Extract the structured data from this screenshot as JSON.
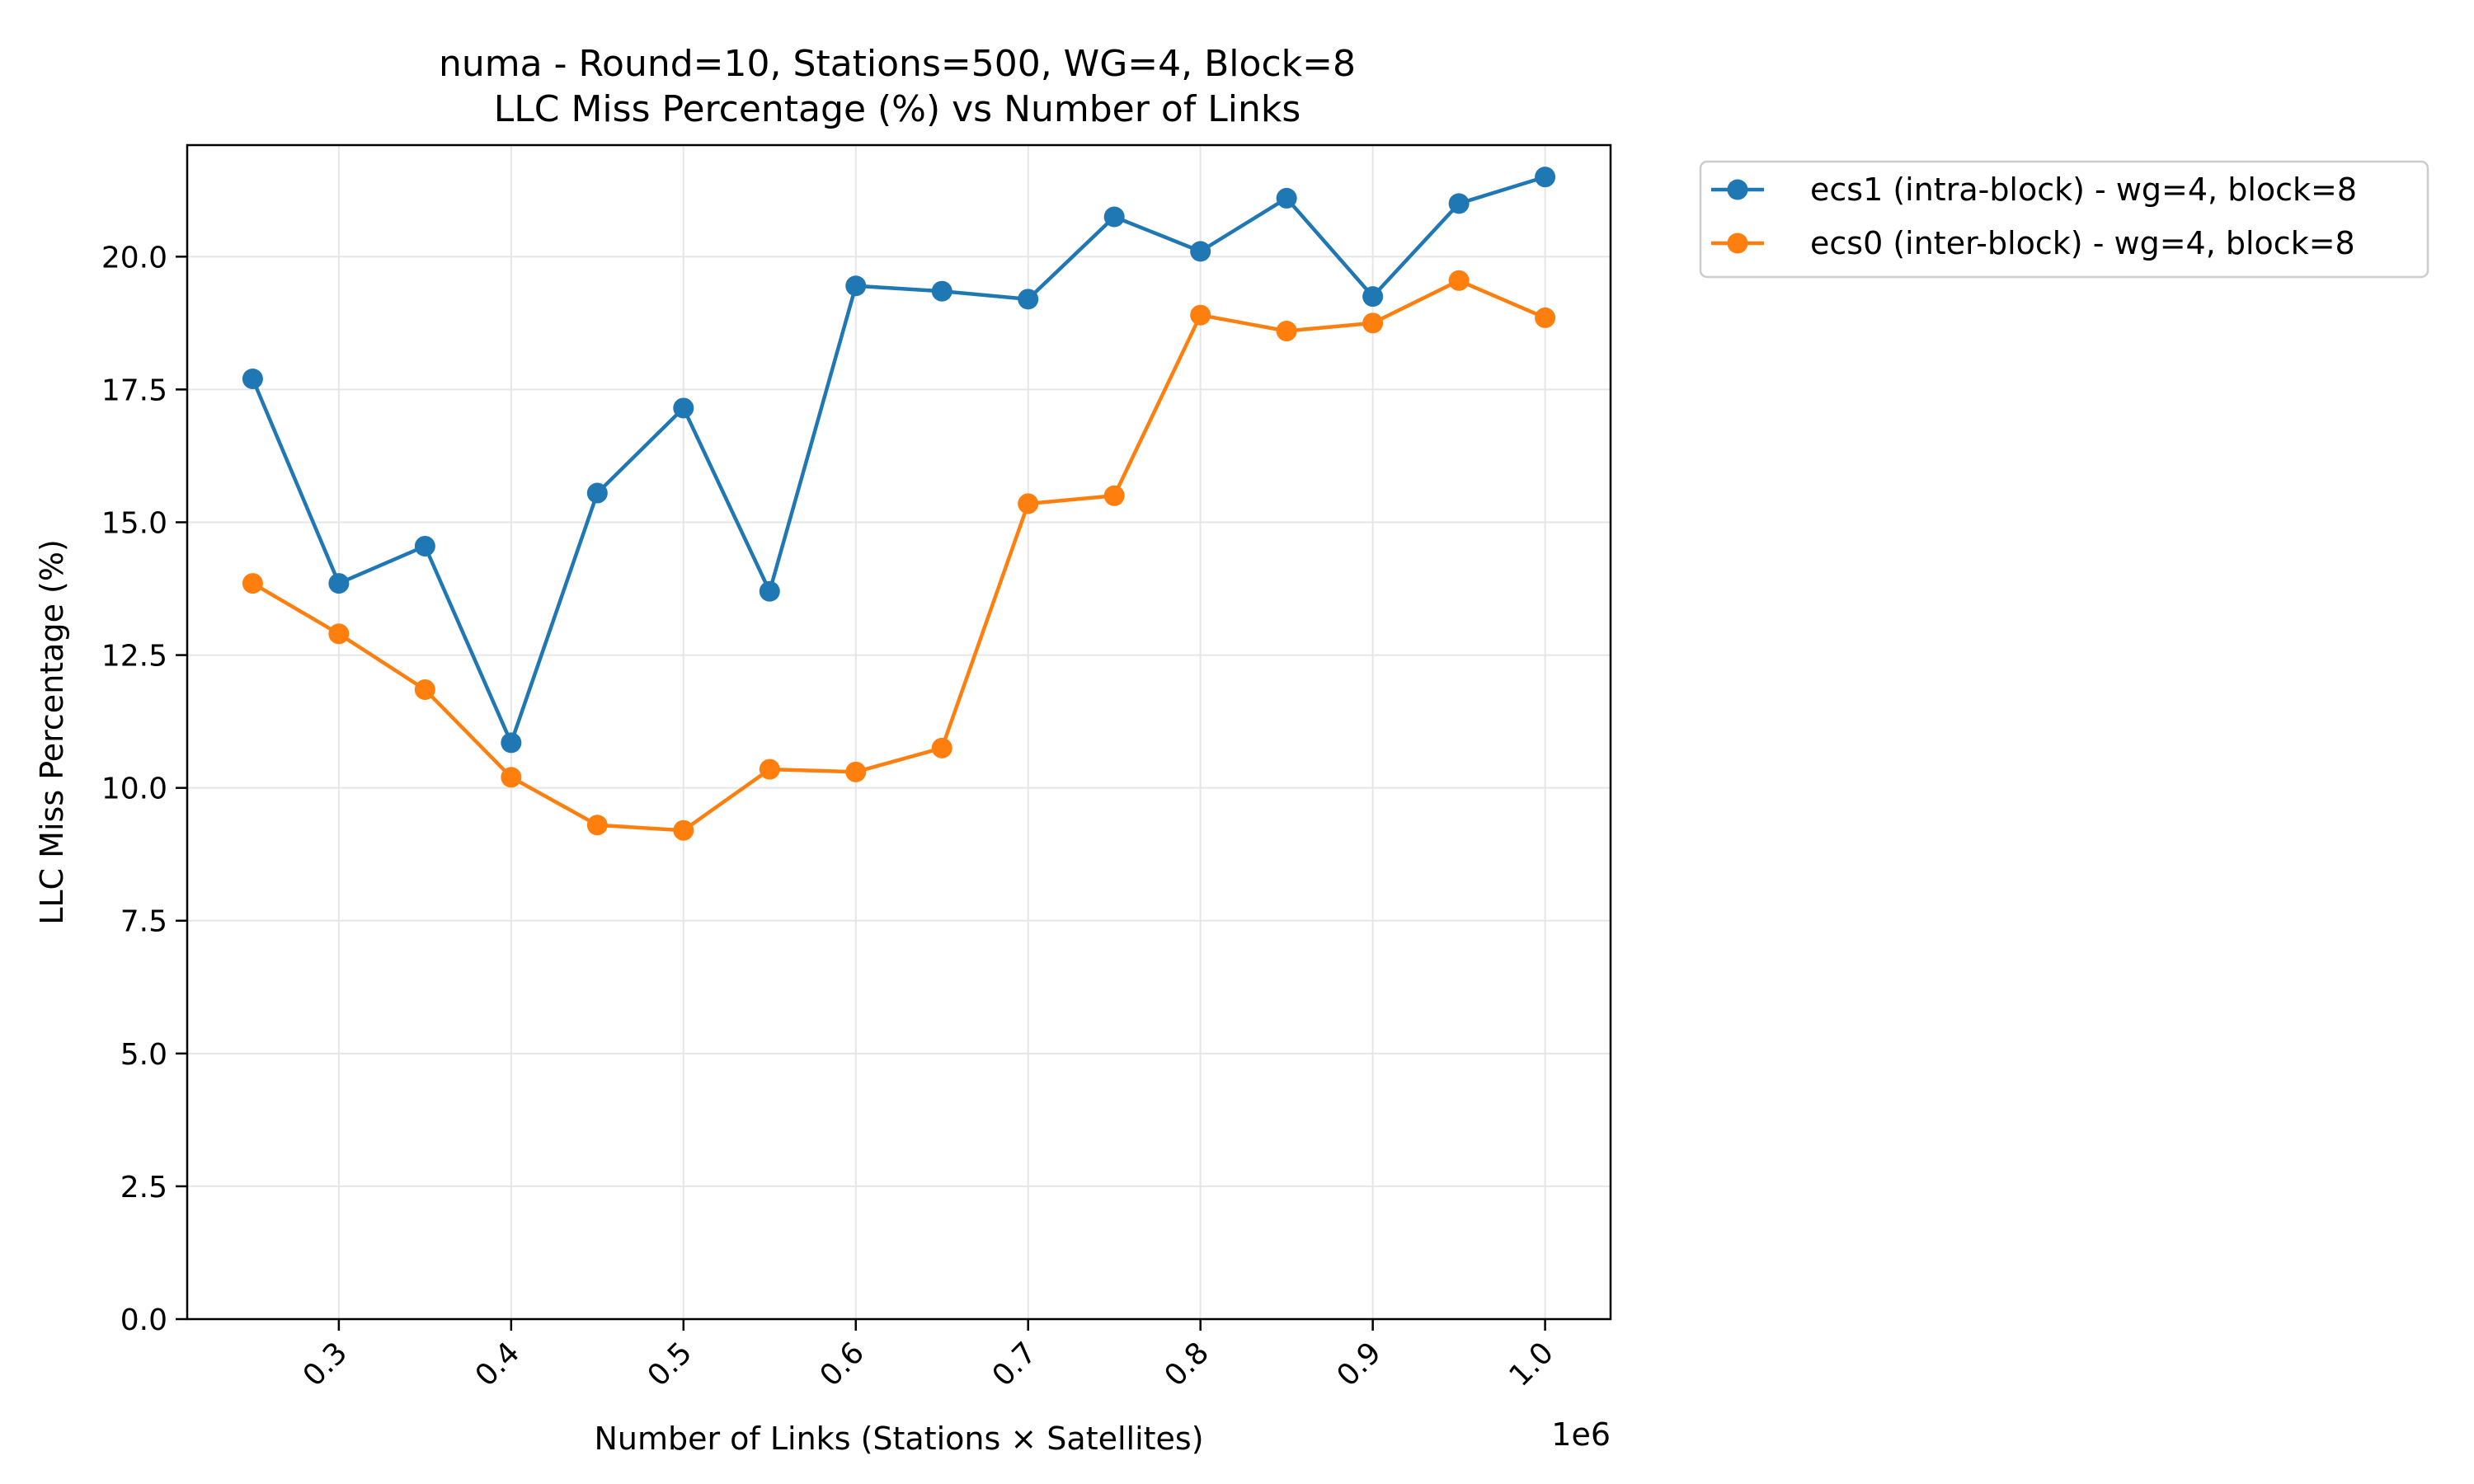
{
  "chart_data": {
    "type": "line",
    "title": "numa - Round=10, Stations=500, WG=4, Block=8",
    "subtitle": "LLC Miss Percentage (%) vs Number of Links",
    "xlabel": "Number of Links (Stations × Satellites)",
    "ylabel": "LLC Miss Percentage (%)",
    "x_offset_label": "1e6",
    "xlim": [
      0.212,
      1.038
    ],
    "ylim": [
      0,
      22.1
    ],
    "x_ticks": [
      0.3,
      0.4,
      0.5,
      0.6,
      0.7,
      0.8,
      0.9,
      1.0
    ],
    "x_tick_labels": [
      "0.3",
      "0.4",
      "0.5",
      "0.6",
      "0.7",
      "0.8",
      "0.9",
      "1.0"
    ],
    "y_ticks": [
      0,
      2.5,
      5,
      7.5,
      10,
      12.5,
      15,
      17.5,
      20
    ],
    "y_tick_labels": [
      "0.0",
      "2.5",
      "5.0",
      "7.5",
      "10.0",
      "12.5",
      "15.0",
      "17.5",
      "20.0"
    ],
    "grid": true,
    "legend_position": "outside-right-top",
    "x": [
      0.25,
      0.3,
      0.35,
      0.4,
      0.45,
      0.5,
      0.55,
      0.6,
      0.65,
      0.7,
      0.75,
      0.8,
      0.85,
      0.9,
      0.95,
      1.0
    ],
    "series": [
      {
        "name": "ecs1 (intra-block) - wg=4, block=8",
        "color": "#1f77b4",
        "values": [
          17.7,
          13.85,
          14.55,
          10.85,
          15.55,
          17.15,
          13.7,
          19.45,
          19.35,
          19.2,
          20.75,
          20.1,
          21.1,
          19.25,
          21.0,
          21.5
        ]
      },
      {
        "name": "ecs0 (inter-block) - wg=4, block=8",
        "color": "#ff7f0e",
        "values": [
          13.85,
          12.9,
          11.85,
          10.2,
          9.3,
          9.2,
          10.35,
          10.3,
          10.75,
          15.35,
          15.5,
          18.9,
          18.6,
          18.75,
          19.55,
          18.85
        ]
      }
    ]
  }
}
